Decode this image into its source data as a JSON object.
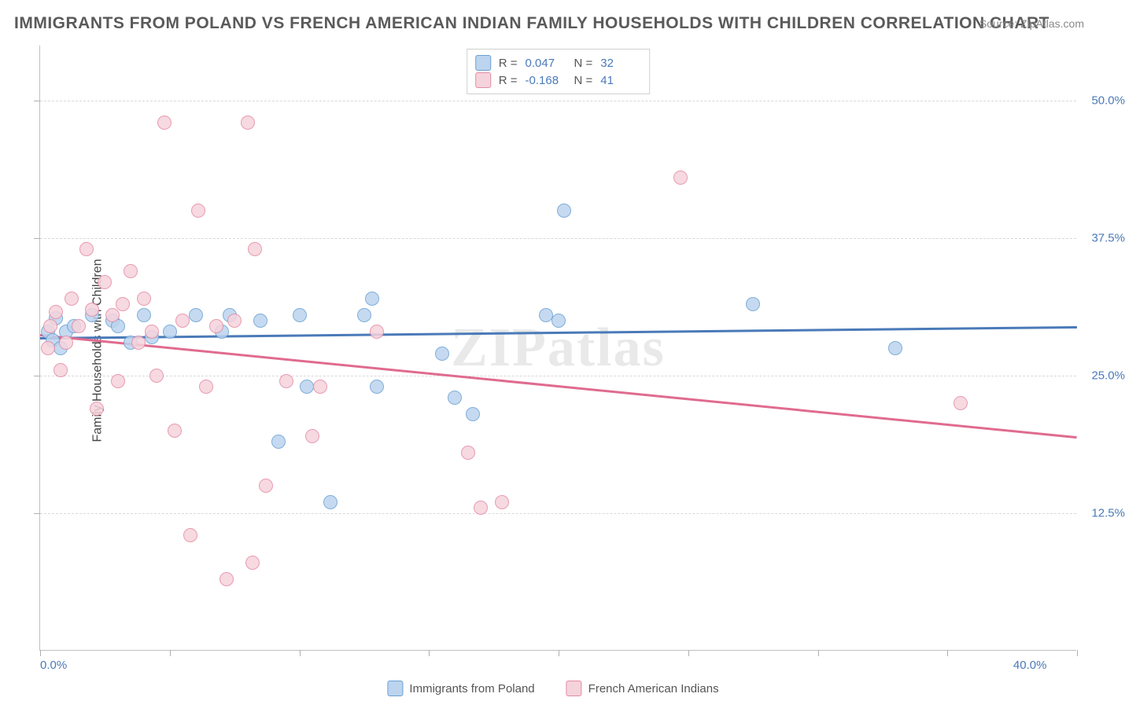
{
  "title": "IMMIGRANTS FROM POLAND VS FRENCH AMERICAN INDIAN FAMILY HOUSEHOLDS WITH CHILDREN CORRELATION CHART",
  "source": "Source: ZipAtlas.com",
  "watermark": "ZIPatlas",
  "ylabel": "Family Households with Children",
  "chart": {
    "type": "scatter",
    "background_color": "#ffffff",
    "grid_color": "#d8d8d8",
    "axis_color": "#c0c0c0",
    "label_color": "#4a7ab8",
    "text_color": "#555555",
    "title_color": "#5a5a5a",
    "title_fontsize": 21,
    "label_fontsize": 15,
    "ylabel_fontsize": 16,
    "xlim": [
      0,
      40
    ],
    "ylim": [
      0,
      55
    ],
    "yticks": [
      12.5,
      25.0,
      37.5,
      50.0
    ],
    "ytick_labels": [
      "12.5%",
      "25.0%",
      "37.5%",
      "50.0%"
    ],
    "xticks": [
      0,
      5,
      10,
      15,
      20,
      25,
      30,
      35,
      40
    ],
    "xtick_labels_shown": {
      "0": "0.0%",
      "40": "40.0%"
    },
    "marker_radius": 9,
    "marker_stroke_width": 1.5,
    "trend_line_width": 2.5
  },
  "series": [
    {
      "name": "Immigrants from Poland",
      "fill_color": "#bcd4ee",
      "stroke_color": "#6a9fd4",
      "swatch_fill": "#bcd4ee",
      "swatch_stroke": "#6a9fd4",
      "R": "0.047",
      "N": "32",
      "trend": {
        "x1": 0,
        "y1": 28.5,
        "x2": 40,
        "y2": 29.5,
        "color": "#4a7ab8"
      },
      "points": [
        [
          0.3,
          29.0
        ],
        [
          0.5,
          28.2
        ],
        [
          0.6,
          30.2
        ],
        [
          0.8,
          27.5
        ],
        [
          1.0,
          29.0
        ],
        [
          1.3,
          29.5
        ],
        [
          2.0,
          30.5
        ],
        [
          2.8,
          30.0
        ],
        [
          3.0,
          29.5
        ],
        [
          3.5,
          28.0
        ],
        [
          4.0,
          30.5
        ],
        [
          4.3,
          28.5
        ],
        [
          5.0,
          29.0
        ],
        [
          6.0,
          30.5
        ],
        [
          7.0,
          29.0
        ],
        [
          7.3,
          30.5
        ],
        [
          8.5,
          30.0
        ],
        [
          9.2,
          19.0
        ],
        [
          10.0,
          30.5
        ],
        [
          10.3,
          24.0
        ],
        [
          11.2,
          13.5
        ],
        [
          12.5,
          30.5
        ],
        [
          12.8,
          32.0
        ],
        [
          13.0,
          24.0
        ],
        [
          15.5,
          27.0
        ],
        [
          16.0,
          23.0
        ],
        [
          16.7,
          21.5
        ],
        [
          20.0,
          30.0
        ],
        [
          20.2,
          40.0
        ],
        [
          27.5,
          31.5
        ],
        [
          33.0,
          27.5
        ],
        [
          19.5,
          30.5
        ]
      ]
    },
    {
      "name": "French American Indians",
      "fill_color": "#f5d3dc",
      "stroke_color": "#e48aa4",
      "swatch_fill": "#f5d3dc",
      "swatch_stroke": "#e48aa4",
      "R": "-0.168",
      "N": "41",
      "trend": {
        "x1": 0,
        "y1": 28.8,
        "x2": 40,
        "y2": 19.5,
        "color": "#e06b8f"
      },
      "points": [
        [
          0.3,
          27.5
        ],
        [
          0.4,
          29.5
        ],
        [
          0.6,
          30.8
        ],
        [
          0.8,
          25.5
        ],
        [
          1.0,
          28.0
        ],
        [
          1.2,
          32.0
        ],
        [
          1.5,
          29.5
        ],
        [
          1.8,
          36.5
        ],
        [
          2.0,
          31.0
        ],
        [
          2.2,
          22.0
        ],
        [
          2.5,
          33.5
        ],
        [
          2.8,
          30.5
        ],
        [
          3.0,
          24.5
        ],
        [
          3.2,
          31.5
        ],
        [
          3.5,
          34.5
        ],
        [
          4.0,
          32.0
        ],
        [
          4.3,
          29.0
        ],
        [
          4.8,
          48.0
        ],
        [
          5.2,
          20.0
        ],
        [
          5.5,
          30.0
        ],
        [
          5.8,
          10.5
        ],
        [
          6.1,
          40.0
        ],
        [
          6.4,
          24.0
        ],
        [
          7.2,
          6.5
        ],
        [
          7.5,
          30.0
        ],
        [
          8.0,
          48.0
        ],
        [
          8.2,
          8.0
        ],
        [
          8.3,
          36.5
        ],
        [
          8.7,
          15.0
        ],
        [
          9.5,
          24.5
        ],
        [
          10.5,
          19.5
        ],
        [
          10.8,
          24.0
        ],
        [
          13.0,
          29.0
        ],
        [
          16.5,
          18.0
        ],
        [
          17.0,
          13.0
        ],
        [
          17.8,
          13.5
        ],
        [
          24.7,
          43.0
        ],
        [
          35.5,
          22.5
        ],
        [
          3.8,
          28.0
        ],
        [
          4.5,
          25.0
        ],
        [
          6.8,
          29.5
        ]
      ]
    }
  ],
  "legend_top": {
    "R_label": "R =",
    "N_label": "N ="
  },
  "legend_bottom": [
    {
      "label": "Immigrants from Poland",
      "fill": "#bcd4ee",
      "stroke": "#6a9fd4"
    },
    {
      "label": "French American Indians",
      "fill": "#f5d3dc",
      "stroke": "#e48aa4"
    }
  ]
}
